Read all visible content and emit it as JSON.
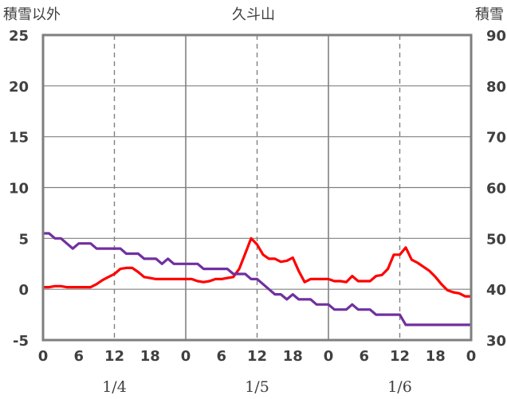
{
  "chart_data": {
    "type": "line",
    "title": "久斗山",
    "left_axis_label": "積雪以外",
    "right_axis_label": "積雪",
    "ylim_left": [
      -5,
      25
    ],
    "ylim_right": [
      30,
      90
    ],
    "yticks_left": [
      "25",
      "20",
      "15",
      "10",
      "5",
      "0",
      "-5"
    ],
    "yticks_right": [
      "90",
      "80",
      "70",
      "60",
      "50",
      "40",
      "30"
    ],
    "x_range_hours": [
      0,
      72
    ],
    "x_tick_labels": [
      "0",
      "6",
      "12",
      "18",
      "0",
      "6",
      "12",
      "18",
      "0",
      "6",
      "12",
      "18",
      "0"
    ],
    "date_labels": [
      "1/4",
      "1/5",
      "1/6"
    ],
    "date_label_hours": [
      12,
      36,
      60
    ],
    "grid": {
      "solid_hours": [
        24,
        48
      ],
      "dashed_hours": [
        12,
        36,
        60
      ],
      "horizontal": true
    },
    "colors": {
      "series_red": "#ff0000",
      "series_purple": "#7030a0",
      "frame": "#7f7f7f",
      "grid": "#808080"
    },
    "series": [
      {
        "axis": "left",
        "color": "#ff0000",
        "x": [
          0,
          1,
          2,
          3,
          4,
          5,
          6,
          7,
          8,
          9,
          10,
          11,
          12,
          13,
          14,
          15,
          16,
          17,
          18,
          19,
          20,
          21,
          22,
          23,
          24,
          25,
          26,
          27,
          28,
          29,
          30,
          31,
          32,
          33,
          34,
          35,
          36,
          37,
          38,
          39,
          40,
          41,
          42,
          43,
          44,
          45,
          46,
          47,
          48,
          49,
          50,
          51,
          52,
          53,
          54,
          55,
          56,
          57,
          58,
          59,
          60,
          61,
          62,
          63,
          64,
          65,
          66,
          67,
          68,
          69,
          70,
          71,
          72
        ],
        "values": [
          0.2,
          0.2,
          0.3,
          0.3,
          0.2,
          0.2,
          0.2,
          0.2,
          0.2,
          0.5,
          0.9,
          1.2,
          1.5,
          2.0,
          2.1,
          2.1,
          1.7,
          1.2,
          1.1,
          1.0,
          1.0,
          1.0,
          1.0,
          1.0,
          1.0,
          1.0,
          0.8,
          0.7,
          0.8,
          1.0,
          1.0,
          1.1,
          1.2,
          2.0,
          3.5,
          5.0,
          4.4,
          3.4,
          3.0,
          3.0,
          2.7,
          2.8,
          3.1,
          1.8,
          0.7,
          1.0,
          1.0,
          1.0,
          1.0,
          0.8,
          0.8,
          0.7,
          1.3,
          0.8,
          0.8,
          0.8,
          1.3,
          1.4,
          2.0,
          3.4,
          3.4,
          4.1,
          2.9,
          2.6,
          2.2,
          1.8,
          1.2,
          0.5,
          -0.1,
          -0.3,
          -0.4,
          -0.7,
          -0.7
        ]
      },
      {
        "axis": "left",
        "color": "#7030a0",
        "x": [
          0,
          1,
          2,
          3,
          4,
          5,
          6,
          7,
          8,
          9,
          10,
          11,
          12,
          13,
          14,
          15,
          16,
          17,
          18,
          19,
          20,
          21,
          22,
          23,
          24,
          25,
          26,
          27,
          28,
          29,
          30,
          31,
          32,
          33,
          34,
          35,
          36,
          37,
          38,
          39,
          40,
          41,
          42,
          43,
          44,
          45,
          46,
          47,
          48,
          49,
          50,
          51,
          52,
          53,
          54,
          55,
          56,
          57,
          58,
          59,
          60,
          61,
          62,
          63,
          64,
          65,
          66,
          67,
          68,
          69,
          70,
          71,
          72
        ],
        "values": [
          5.5,
          5.5,
          5.0,
          5.0,
          4.5,
          4.0,
          4.5,
          4.5,
          4.5,
          4.0,
          4.0,
          4.0,
          4.0,
          4.0,
          3.5,
          3.5,
          3.5,
          3.0,
          3.0,
          3.0,
          2.5,
          3.0,
          2.5,
          2.5,
          2.5,
          2.5,
          2.5,
          2.0,
          2.0,
          2.0,
          2.0,
          2.0,
          1.5,
          1.5,
          1.5,
          1.0,
          1.0,
          0.5,
          0.0,
          -0.5,
          -0.5,
          -1.0,
          -0.5,
          -1.0,
          -1.0,
          -1.0,
          -1.5,
          -1.5,
          -1.5,
          -2.0,
          -2.0,
          -2.0,
          -1.5,
          -2.0,
          -2.0,
          -2.0,
          -2.5,
          -2.5,
          -2.5,
          -2.5,
          -2.5,
          -3.5,
          -3.5,
          -3.5,
          -3.5,
          -3.5,
          -3.5,
          -3.5,
          -3.5,
          -3.5,
          -3.5,
          -3.5,
          -3.5
        ]
      }
    ]
  }
}
